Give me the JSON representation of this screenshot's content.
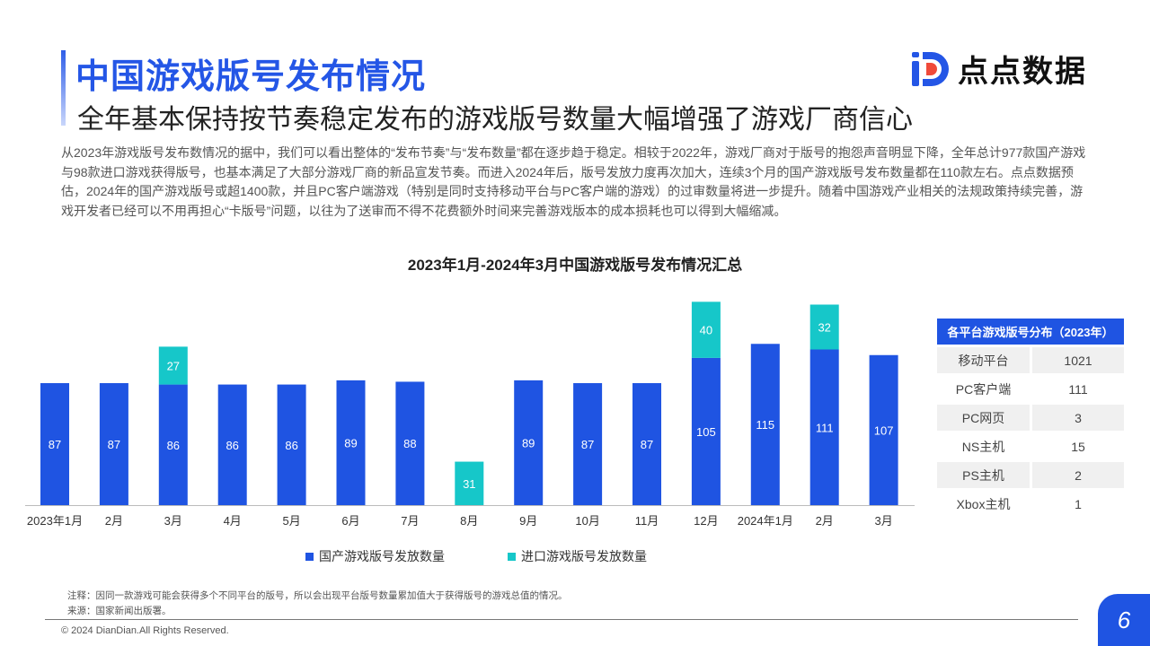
{
  "header": {
    "title": "中国游戏版号发布情况",
    "subtitle": "全年基本保持按节奏稳定发布的游戏版号数量大幅增强了游戏厂商信心",
    "logo_text": "点点数据"
  },
  "paragraph": "从2023年游戏版号发布数情况的据中，我们可以看出整体的“发布节奏”与“发布数量”都在逐步趋于稳定。相较于2022年，游戏厂商对于版号的抱怨声音明显下降，全年总计977款国产游戏与98款进口游戏获得版号，也基本满足了大部分游戏厂商的新品宣发节奏。而进入2024年后，版号发放力度再次加大，连续3个月的国产游戏版号发布数量都在110款左右。点点数据预估，2024年的国产游戏版号或超1400款，并且PC客户端游戏（特别是同时支持移动平台与PC客户端的游戏）的过审数量将进一步提升。随着中国游戏产业相关的法规政策持续完善，游戏开发者已经可以不用再担心“卡版号”问题，以往为了送审而不得不花费额外时间来完善游戏版本的成本损耗也可以得到大幅缩减。",
  "chart_data": {
    "type": "bar",
    "stacked": true,
    "title": "2023年1月-2024年3月中国游戏版号发布情况汇总",
    "categories": [
      "2023年1月",
      "2月",
      "3月",
      "4月",
      "5月",
      "6月",
      "7月",
      "8月",
      "9月",
      "10月",
      "11月",
      "12月",
      "2024年1月",
      "2月",
      "3月"
    ],
    "series": [
      {
        "name": "国产游戏版号发放数量",
        "color": "#1f54e2",
        "values": [
          87,
          87,
          86,
          86,
          86,
          89,
          88,
          null,
          89,
          87,
          87,
          105,
          115,
          111,
          107
        ]
      },
      {
        "name": "进口游戏版号发放数量",
        "color": "#16c7c9",
        "values": [
          null,
          null,
          27,
          null,
          null,
          null,
          null,
          31,
          null,
          null,
          null,
          40,
          null,
          32,
          null
        ]
      }
    ],
    "ylim": [
      0,
      150
    ],
    "grid": false,
    "legend": "bottom"
  },
  "table": {
    "header": "各平台游戏版号分布（2023年）",
    "rows": [
      [
        "移动平台",
        "1021"
      ],
      [
        "PC客户端",
        "111"
      ],
      [
        "PC网页",
        "3"
      ],
      [
        "NS主机",
        "15"
      ],
      [
        "PS主机",
        "2"
      ],
      [
        "Xbox主机",
        "1"
      ]
    ]
  },
  "footer": {
    "note": "注释：因同一款游戏可能会获得多个不同平台的版号，所以会出现平台版号数量累加值大于获得版号的游戏总值的情况。",
    "source": "来源：国家新闻出版署。",
    "copyright": "© 2024 DianDian.All Rights Reserved.",
    "page": "6"
  }
}
